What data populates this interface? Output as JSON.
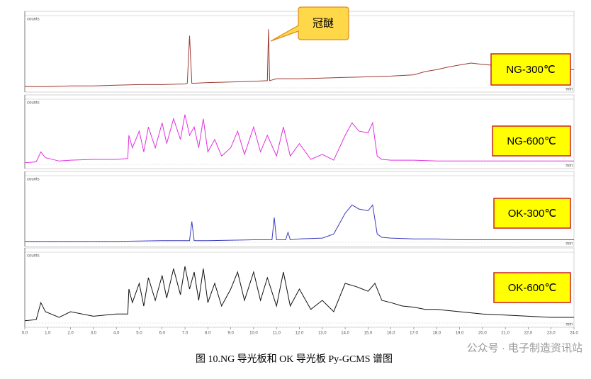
{
  "chart_data": [
    {
      "type": "line",
      "label": "NG-300℃",
      "annotation": "冠醚",
      "y_label": "counts",
      "x_label": "min",
      "xlim": [
        0,
        24
      ],
      "ylim": [
        0,
        1
      ],
      "x": [
        0,
        1,
        2,
        3,
        4,
        5,
        6,
        7,
        7.1,
        7.2,
        7.3,
        8,
        9,
        10,
        10.6,
        10.65,
        10.7,
        11,
        12,
        13,
        14,
        15,
        16,
        17,
        17.5,
        18,
        18.5,
        19,
        19.5,
        20,
        21,
        22,
        23,
        24
      ],
      "series": [
        {
          "color": "#9b3a32",
          "values": [
            0.02,
            0.02,
            0.03,
            0.03,
            0.04,
            0.05,
            0.05,
            0.06,
            0.07,
            0.8,
            0.07,
            0.08,
            0.09,
            0.1,
            0.11,
            0.9,
            0.11,
            0.14,
            0.14,
            0.15,
            0.16,
            0.17,
            0.18,
            0.2,
            0.25,
            0.28,
            0.32,
            0.35,
            0.38,
            0.36,
            0.33,
            0.3,
            0.28,
            0.28
          ]
        }
      ]
    },
    {
      "type": "line",
      "label": "NG-600℃",
      "y_label": "counts",
      "x_label": "min",
      "xlim": [
        0,
        24
      ],
      "ylim": [
        0,
        0.7
      ],
      "x": [
        0,
        0.5,
        0.7,
        0.9,
        1.5,
        2,
        3,
        4,
        4.5,
        4.55,
        4.7,
        5,
        5.2,
        5.4,
        5.7,
        6,
        6.2,
        6.5,
        6.8,
        7,
        7.2,
        7.4,
        7.6,
        7.8,
        8,
        8.3,
        8.6,
        9,
        9.3,
        9.6,
        10,
        10.3,
        10.6,
        11,
        11.3,
        11.6,
        12,
        12.5,
        13,
        13.5,
        14,
        14.3,
        14.6,
        15,
        15.2,
        15.4,
        15.6,
        16,
        17,
        18,
        19,
        20,
        21,
        22,
        23,
        24
      ],
      "series": [
        {
          "color": "#e030e0",
          "values": [
            0.02,
            0.03,
            0.15,
            0.08,
            0.04,
            0.05,
            0.06,
            0.06,
            0.07,
            0.35,
            0.2,
            0.4,
            0.15,
            0.45,
            0.2,
            0.5,
            0.25,
            0.55,
            0.3,
            0.6,
            0.35,
            0.45,
            0.2,
            0.55,
            0.15,
            0.3,
            0.1,
            0.2,
            0.4,
            0.12,
            0.45,
            0.15,
            0.35,
            0.1,
            0.45,
            0.1,
            0.25,
            0.06,
            0.12,
            0.05,
            0.35,
            0.5,
            0.4,
            0.38,
            0.5,
            0.1,
            0.06,
            0.05,
            0.05,
            0.04,
            0.04,
            0.04,
            0.04,
            0.04,
            0.04,
            0.04
          ]
        }
      ]
    },
    {
      "type": "line",
      "label": "OK-300℃",
      "y_label": "counts",
      "x_label": "min",
      "xlim": [
        0,
        24
      ],
      "ylim": [
        0,
        0.7
      ],
      "x": [
        0,
        2,
        4,
        6,
        7.2,
        7.3,
        7.4,
        8,
        10,
        10.8,
        10.9,
        11,
        11.4,
        11.5,
        11.6,
        12,
        13,
        13.5,
        14,
        14.3,
        14.6,
        15,
        15.2,
        15.4,
        15.6,
        16,
        17,
        18,
        19,
        20,
        21,
        22,
        23,
        24
      ],
      "series": [
        {
          "color": "#3a3ac0",
          "values": [
            0.01,
            0.01,
            0.01,
            0.02,
            0.02,
            0.25,
            0.02,
            0.02,
            0.03,
            0.03,
            0.3,
            0.03,
            0.03,
            0.12,
            0.03,
            0.04,
            0.05,
            0.1,
            0.35,
            0.45,
            0.4,
            0.38,
            0.45,
            0.1,
            0.06,
            0.05,
            0.04,
            0.04,
            0.03,
            0.03,
            0.03,
            0.03,
            0.03,
            0.03
          ]
        }
      ]
    },
    {
      "type": "line",
      "label": "OK-600℃",
      "y_label": "counts",
      "x_label": "min",
      "xlim": [
        0,
        24
      ],
      "ylim": [
        0,
        0.55
      ],
      "xticks": [
        {
          "value": 0,
          "label": "0.0"
        },
        {
          "value": 1,
          "label": "1.0"
        },
        {
          "value": 2,
          "label": "2.0"
        },
        {
          "value": 3,
          "label": "3.0"
        },
        {
          "value": 4,
          "label": "4.0"
        },
        {
          "value": 5,
          "label": "5.0"
        },
        {
          "value": 6,
          "label": "6.0"
        },
        {
          "value": 7,
          "label": "7.0"
        },
        {
          "value": 8,
          "label": "8.0"
        },
        {
          "value": 9,
          "label": "9.0"
        },
        {
          "value": 10,
          "label": "10.0"
        },
        {
          "value": 11,
          "label": "11.0"
        },
        {
          "value": 12,
          "label": "12.0"
        },
        {
          "value": 13,
          "label": "13.0"
        },
        {
          "value": 14,
          "label": "14.0"
        },
        {
          "value": 15,
          "label": "15.0"
        },
        {
          "value": 16,
          "label": "16.0"
        },
        {
          "value": 17,
          "label": "17.0"
        },
        {
          "value": 18,
          "label": "18.0"
        },
        {
          "value": 19,
          "label": "19.0"
        },
        {
          "value": 20,
          "label": "20.0"
        },
        {
          "value": 21,
          "label": "21.0"
        },
        {
          "value": 22,
          "label": "22.0"
        },
        {
          "value": 23,
          "label": "23.0"
        },
        {
          "value": 24,
          "label": "24.0"
        }
      ],
      "x": [
        0,
        0.5,
        0.7,
        0.9,
        1.5,
        2,
        3,
        4,
        4.5,
        4.55,
        4.7,
        5,
        5.2,
        5.4,
        5.7,
        6,
        6.2,
        6.5,
        6.8,
        7,
        7.2,
        7.4,
        7.6,
        7.8,
        8,
        8.3,
        8.6,
        9,
        9.3,
        9.6,
        10,
        10.3,
        10.6,
        11,
        11.3,
        11.6,
        12,
        12.5,
        13,
        13.5,
        14,
        14.5,
        15,
        15.3,
        15.6,
        16,
        16.5,
        17,
        17.5,
        18,
        19,
        20,
        21,
        22,
        23,
        24
      ],
      "series": [
        {
          "color": "#111111",
          "values": [
            0.02,
            0.03,
            0.18,
            0.1,
            0.05,
            0.1,
            0.06,
            0.08,
            0.08,
            0.3,
            0.18,
            0.35,
            0.15,
            0.4,
            0.2,
            0.42,
            0.22,
            0.48,
            0.25,
            0.5,
            0.3,
            0.45,
            0.2,
            0.48,
            0.18,
            0.35,
            0.15,
            0.3,
            0.45,
            0.2,
            0.45,
            0.2,
            0.4,
            0.15,
            0.45,
            0.15,
            0.3,
            0.12,
            0.2,
            0.1,
            0.35,
            0.32,
            0.28,
            0.35,
            0.2,
            0.18,
            0.15,
            0.14,
            0.12,
            0.12,
            0.1,
            0.08,
            0.07,
            0.06,
            0.05,
            0.05
          ]
        }
      ]
    }
  ],
  "caption": "图 10.NG 导光板和 OK 导光板 Py-GCMS 谱图",
  "watermark": "公众号 · 电子制造资讯站"
}
